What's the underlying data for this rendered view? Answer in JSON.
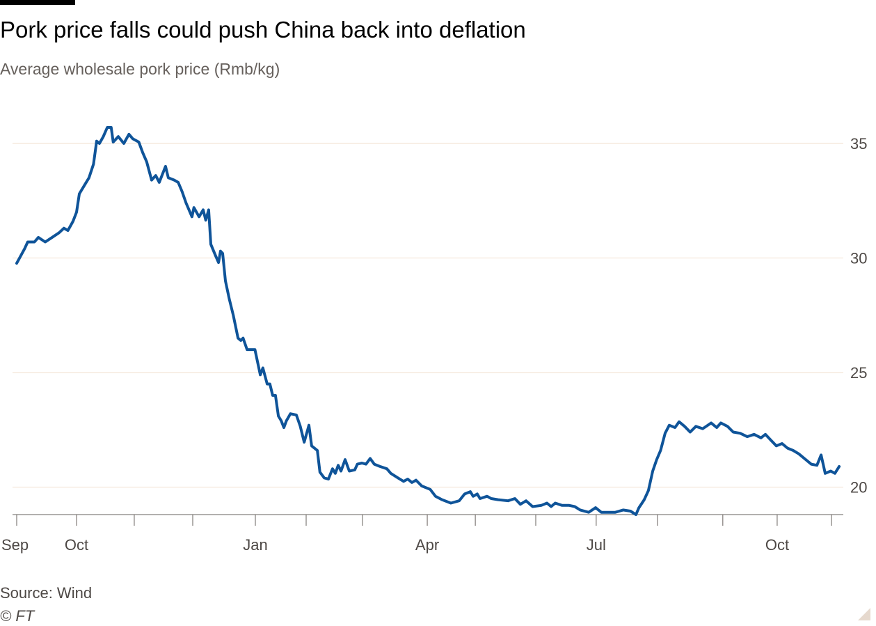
{
  "chart_data": {
    "type": "line",
    "title": "Pork price falls could push China back into deflation",
    "subtitle": "Average wholesale pork price (Rmb/kg)",
    "xlabel": "",
    "ylabel": "Rmb/kg",
    "x_unit": "days since 1 Sep",
    "ylim": [
      18.8,
      36.3
    ],
    "xlim": [
      0,
      420
    ],
    "grid": true,
    "y_ticks": [
      20,
      25,
      30,
      35
    ],
    "x_ticks": [
      {
        "label": "Sep",
        "x": 0
      },
      {
        "label": "Oct",
        "x": 30.4
      },
      {
        "label": "Jan",
        "x": 121.2
      },
      {
        "label": "Apr",
        "x": 208.5
      },
      {
        "label": "Jul",
        "x": 294.3
      },
      {
        "label": "Oct",
        "x": 386.2
      }
    ],
    "minor_ticks": [
      0,
      30.4,
      59.7,
      89.4,
      121.2,
      147,
      175.6,
      208.5,
      232.9,
      263.6,
      294.3,
      325.4,
      358.6,
      386.2,
      413.8
    ],
    "series": [
      {
        "name": "Average wholesale pork price",
        "color": "#0f5499",
        "x": [
          0,
          4,
          5.6,
          9,
          11,
          14.5,
          18,
          21.5,
          24,
          26,
          28.6,
          30.4,
          31.8,
          34.6,
          36.7,
          39,
          40.6,
          42,
          44,
          46,
          48,
          49,
          51.6,
          54.4,
          57,
          59,
          62,
          64,
          66,
          68.5,
          70.6,
          72.4,
          75.6,
          77,
          80,
          82,
          84,
          86,
          89,
          90,
          92.6,
          94.7,
          96,
          97.5,
          98.6,
          101,
          102.5,
          103.5,
          104.6,
          106,
          108,
          110,
          112.4,
          113.8,
          115,
          117,
          121,
          123.7,
          125,
          127.2,
          128.6,
          130,
          131.4,
          132.9,
          134.3,
          135.7,
          137,
          139,
          142,
          144,
          146,
          148.4,
          149.8,
          152.7,
          154,
          156.2,
          158.3,
          160.4,
          161.8,
          163.3,
          164.7,
          166.8,
          168.9,
          171.7,
          173,
          175.3,
          177.4,
          179.5,
          181.6,
          184.5,
          188,
          190,
          193.6,
          196.5,
          198.6,
          200.7,
          202.8,
          205.7,
          210,
          212.7,
          216,
          220.5,
          224.7,
          227.5,
          230.4,
          231.8,
          233.9,
          235.3,
          238.9,
          241,
          244.5,
          249.5,
          253,
          255.8,
          258.7,
          262,
          266.4,
          269.3,
          271.4,
          273.5,
          277,
          280.6,
          283.4,
          286.2,
          290.5,
          294,
          296.9,
          300.4,
          304,
          308,
          311.7,
          314.5,
          316,
          318.7,
          320.8,
          323,
          325,
          327,
          329.3,
          331.4,
          334.3,
          336.4,
          339.2,
          342,
          344.9,
          348.4,
          352.7,
          355.5,
          357.6,
          361,
          363.9,
          367.4,
          371,
          374.5,
          378,
          380.2,
          383,
          385.8,
          388.7,
          391.5,
          394.3,
          397.2,
          400,
          403.5,
          406.4,
          408.5,
          410.6,
          413.4,
          415.5,
          417.7
        ],
        "values": [
          29.77,
          30.4,
          30.7,
          30.7,
          30.9,
          30.7,
          30.9,
          31.1,
          31.3,
          31.2,
          31.6,
          32.0,
          32.8,
          33.2,
          33.5,
          34.1,
          35.1,
          35.0,
          35.3,
          35.7,
          35.7,
          35.06,
          35.3,
          35.0,
          35.4,
          35.2,
          35.06,
          34.6,
          34.2,
          33.4,
          33.6,
          33.3,
          34.0,
          33.5,
          33.4,
          33.3,
          32.9,
          32.4,
          31.8,
          32.2,
          31.8,
          32.1,
          31.65,
          32.1,
          30.6,
          30.1,
          29.8,
          30.3,
          30.2,
          29.0,
          28.2,
          27.5,
          26.5,
          26.4,
          26.5,
          26.0,
          26.0,
          24.9,
          25.2,
          24.5,
          24.5,
          24.0,
          24.0,
          23.1,
          22.9,
          22.6,
          22.9,
          23.2,
          23.15,
          22.66,
          21.96,
          22.7,
          21.8,
          21.6,
          20.65,
          20.4,
          20.35,
          20.8,
          20.6,
          20.95,
          20.7,
          21.2,
          20.7,
          20.75,
          21.0,
          21.05,
          21.0,
          21.25,
          21.0,
          20.9,
          20.8,
          20.6,
          20.4,
          20.25,
          20.35,
          20.2,
          20.3,
          20.05,
          19.9,
          19.6,
          19.45,
          19.3,
          19.4,
          19.7,
          19.8,
          19.6,
          19.7,
          19.5,
          19.6,
          19.5,
          19.45,
          19.4,
          19.5,
          19.25,
          19.4,
          19.15,
          19.2,
          19.3,
          19.15,
          19.3,
          19.2,
          19.2,
          19.15,
          19.0,
          18.9,
          19.1,
          18.9,
          18.9,
          18.9,
          19.0,
          18.95,
          18.8,
          19.1,
          19.45,
          19.85,
          20.7,
          21.2,
          21.6,
          22.35,
          22.7,
          22.6,
          22.85,
          22.65,
          22.4,
          22.65,
          22.55,
          22.8,
          22.6,
          22.8,
          22.65,
          22.4,
          22.35,
          22.2,
          22.3,
          22.15,
          22.3,
          22.05,
          21.8,
          21.9,
          21.7,
          21.6,
          21.45,
          21.25,
          21.0,
          20.95,
          21.4,
          20.6,
          20.7,
          20.6,
          20.9
        ]
      }
    ],
    "colors": {
      "grid": "#f2dfce",
      "axis": "#66605c"
    }
  },
  "footer": {
    "source": "Source: Wind",
    "copyright": "© FT"
  }
}
